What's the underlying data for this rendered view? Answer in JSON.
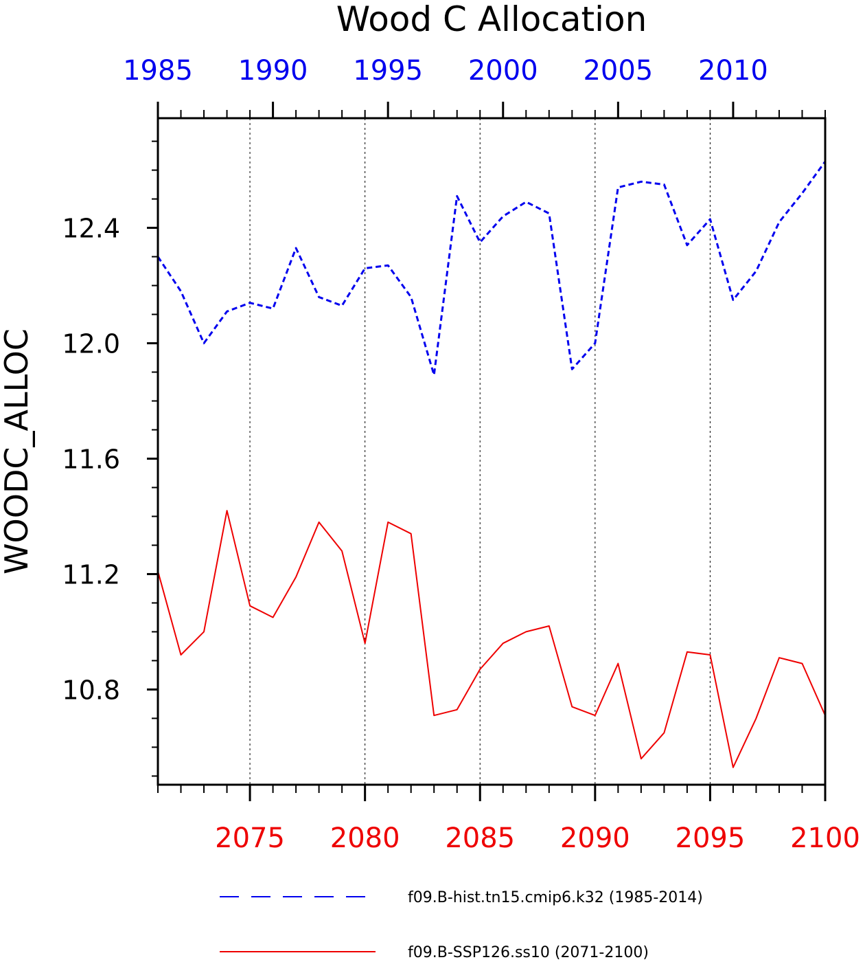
{
  "chart_data": {
    "type": "line",
    "title": "Wood C Allocation",
    "ylabel": "WOODC_ALLOC",
    "ylim": [
      10.47,
      12.78
    ],
    "yticks": [
      10.8,
      11.2,
      11.6,
      12.0,
      12.4
    ],
    "ytick_labels": [
      "10.8",
      "11.2",
      "11.6",
      "12.0",
      "12.4"
    ],
    "yminor_step": 0.1,
    "grid": "vertical dotted lines at major x ticks",
    "legend_position": "bottom",
    "x_top": {
      "lim": [
        1985,
        2014
      ],
      "ticks": [
        1985,
        1990,
        1995,
        2000,
        2005,
        2010
      ],
      "tick_labels": [
        "1985",
        "1990",
        "1995",
        "2000",
        "2005",
        "2010"
      ],
      "color": "#0000ee"
    },
    "x_bottom": {
      "lim": [
        2071,
        2100
      ],
      "ticks": [
        2075,
        2080,
        2085,
        2090,
        2095,
        2100
      ],
      "tick_labels": [
        "2075",
        "2080",
        "2085",
        "2090",
        "2095",
        "2100"
      ],
      "color": "#ee0000"
    },
    "series": [
      {
        "name": "f09.B-hist.tn15.cmip6.k32 (1985-2014)",
        "axis": "top",
        "color": "#0000ee",
        "style": "dashed",
        "x": [
          1985,
          1986,
          1987,
          1988,
          1989,
          1990,
          1991,
          1992,
          1993,
          1994,
          1995,
          1996,
          1997,
          1998,
          1999,
          2000,
          2001,
          2002,
          2003,
          2004,
          2005,
          2006,
          2007,
          2008,
          2009,
          2010,
          2011,
          2012,
          2013,
          2014
        ],
        "values": [
          12.3,
          12.18,
          12.0,
          12.11,
          12.14,
          12.12,
          12.33,
          12.16,
          12.13,
          12.26,
          12.27,
          12.16,
          11.89,
          12.51,
          12.35,
          12.44,
          12.49,
          12.45,
          11.91,
          12.0,
          12.54,
          12.56,
          12.55,
          12.34,
          12.43,
          12.15,
          12.25,
          12.42,
          12.52,
          12.63
        ]
      },
      {
        "name": "f09.B-SSP126.ss10 (2071-2100)",
        "axis": "bottom",
        "color": "#ee0000",
        "style": "solid",
        "x": [
          2071,
          2072,
          2073,
          2074,
          2075,
          2076,
          2077,
          2078,
          2079,
          2080,
          2081,
          2082,
          2083,
          2084,
          2085,
          2086,
          2087,
          2088,
          2089,
          2090,
          2091,
          2092,
          2093,
          2094,
          2095,
          2096,
          2097,
          2098,
          2099,
          2100
        ],
        "values": [
          11.21,
          10.92,
          11.0,
          11.42,
          11.09,
          11.05,
          11.19,
          11.38,
          11.28,
          10.96,
          11.38,
          11.34,
          10.71,
          10.73,
          10.87,
          10.96,
          11.0,
          11.02,
          10.74,
          10.71,
          10.89,
          10.56,
          10.65,
          10.93,
          10.92,
          10.53,
          10.7,
          10.91,
          10.89,
          10.71
        ]
      }
    ]
  }
}
